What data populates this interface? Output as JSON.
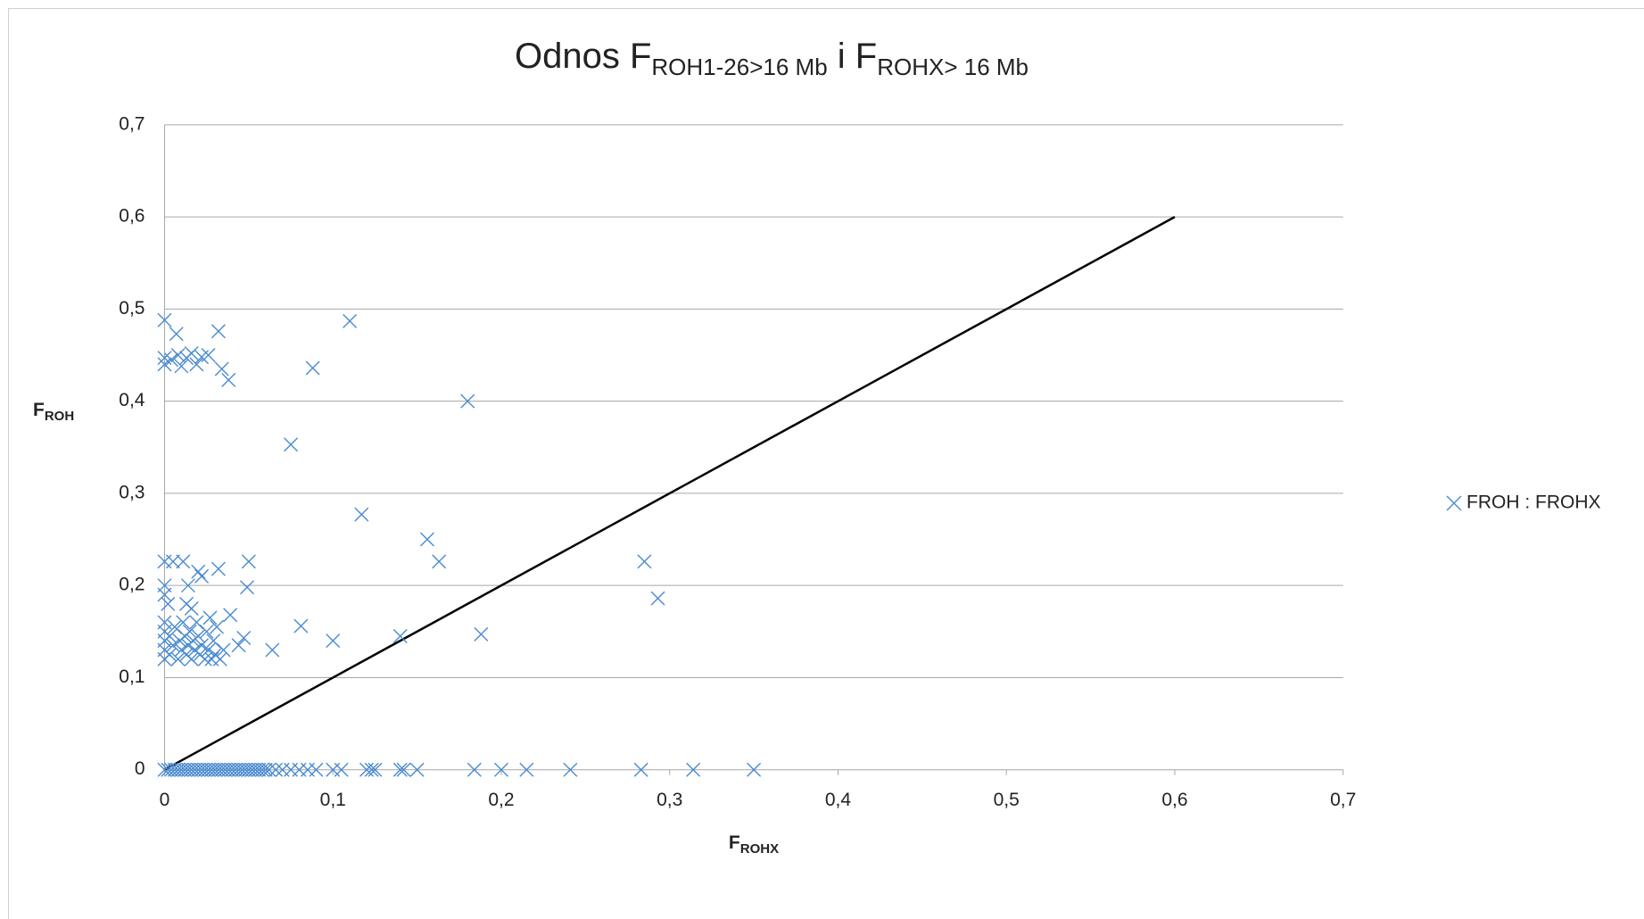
{
  "chart_data": {
    "type": "scatter",
    "title_parts": [
      "Odnos F",
      "ROH1-26>16 Mb",
      " i F",
      "ROHX> 16 Mb"
    ],
    "y_label_parts": [
      "F",
      "ROH"
    ],
    "x_label_parts": [
      "F",
      "ROHX"
    ],
    "xlim": [
      0,
      0.7
    ],
    "ylim": [
      0,
      0.7
    ],
    "xticks": [
      0,
      {
        "value": 0.1,
        "label": "0,1"
      },
      {
        "value": 0.2,
        "label": "0,2"
      },
      {
        "value": 0.3,
        "label": "0,3"
      },
      {
        "value": 0.4,
        "label": "0,4"
      },
      {
        "value": 0.5,
        "label": "0,5"
      },
      {
        "value": 0.6,
        "label": "0,6"
      },
      {
        "value": 0.7,
        "label": "0,7"
      }
    ],
    "yticks": [
      0,
      {
        "value": 0.1,
        "label": "0,1"
      },
      {
        "value": 0.2,
        "label": "0,2"
      },
      {
        "value": 0.3,
        "label": "0,3"
      },
      {
        "value": 0.4,
        "label": "0,4"
      },
      {
        "value": 0.5,
        "label": "0,5"
      },
      {
        "value": 0.6,
        "label": "0,6"
      },
      {
        "value": 0.7,
        "label": "0,7"
      }
    ],
    "grid": true,
    "legend": "right",
    "reference_line": {
      "x": [
        0,
        0.6
      ],
      "values": [
        0,
        0.6
      ],
      "color": "#000000"
    },
    "series": [
      {
        "name": "FROH : FROHX",
        "color": "#4a8bd0",
        "x": [
          0,
          0.007,
          0.032,
          0.11,
          0,
          0,
          0.004,
          0.008,
          0.01,
          0.013,
          0.016,
          0.019,
          0.022,
          0.026,
          0.034,
          0.038,
          0.088,
          0.18,
          0.075,
          0.117,
          0.156,
          0.163,
          0.285,
          0.293,
          0.188,
          0.14,
          0.1,
          0.081,
          0.064,
          0.05,
          0.049,
          0.032,
          0.039,
          0.047,
          0.044,
          0,
          0.005,
          0.011,
          0.014,
          0.02,
          0.022,
          0,
          0,
          0.002,
          0.013,
          0.016,
          0,
          0,
          0,
          0,
          0,
          0.003,
          0.003,
          0.005,
          0.006,
          0.008,
          0.009,
          0.01,
          0.011,
          0.012,
          0.013,
          0.014,
          0.015,
          0.016,
          0.017,
          0.018,
          0.019,
          0.02,
          0.021,
          0.022,
          0.024,
          0.025,
          0.026,
          0.027,
          0.028,
          0.029,
          0.03,
          0.031,
          0.033,
          0.035,
          0,
          0.002,
          0.004,
          0.006,
          0.008,
          0.01,
          0.012,
          0.014,
          0.016,
          0.018,
          0.02,
          0.022,
          0.024,
          0.026,
          0.028,
          0.03,
          0.032,
          0.034,
          0.036,
          0.038,
          0.04,
          0.042,
          0.044,
          0.046,
          0.048,
          0.05,
          0.052,
          0.054,
          0.056,
          0.058,
          0.06,
          0.062,
          0.066,
          0.07,
          0.075,
          0.08,
          0.085,
          0.09,
          0.1,
          0.105,
          0.12,
          0.123,
          0.125,
          0.14,
          0.142,
          0.15,
          0.184,
          0.2,
          0.215,
          0.241,
          0.283,
          0.314,
          0.35
        ],
        "values": [
          0.488,
          0.473,
          0.476,
          0.487,
          0.44,
          0.447,
          0.445,
          0.45,
          0.438,
          0.447,
          0.452,
          0.44,
          0.448,
          0.45,
          0.435,
          0.423,
          0.436,
          0.4,
          0.353,
          0.277,
          0.25,
          0.226,
          0.226,
          0.186,
          0.147,
          0.145,
          0.14,
          0.156,
          0.13,
          0.226,
          0.198,
          0.218,
          0.168,
          0.143,
          0.135,
          0.226,
          0.226,
          0.226,
          0.2,
          0.215,
          0.21,
          0.2,
          0.19,
          0.18,
          0.18,
          0.175,
          0.12,
          0.13,
          0.14,
          0.15,
          0.16,
          0.125,
          0.145,
          0.135,
          0.155,
          0.12,
          0.14,
          0.13,
          0.16,
          0.145,
          0.125,
          0.135,
          0.15,
          0.12,
          0.14,
          0.13,
          0.16,
          0.145,
          0.125,
          0.135,
          0.12,
          0.15,
          0.13,
          0.165,
          0.12,
          0.14,
          0.125,
          0.155,
          0.12,
          0.13,
          0,
          0,
          0,
          0,
          0,
          0,
          0,
          0,
          0,
          0,
          0,
          0,
          0,
          0,
          0,
          0,
          0,
          0,
          0,
          0,
          0,
          0,
          0,
          0,
          0,
          0,
          0,
          0,
          0,
          0,
          0,
          0,
          0,
          0,
          0,
          0,
          0,
          0,
          0,
          0,
          0,
          0,
          0,
          0,
          0,
          0,
          0,
          0,
          0,
          0,
          0,
          0,
          0
        ]
      }
    ]
  }
}
